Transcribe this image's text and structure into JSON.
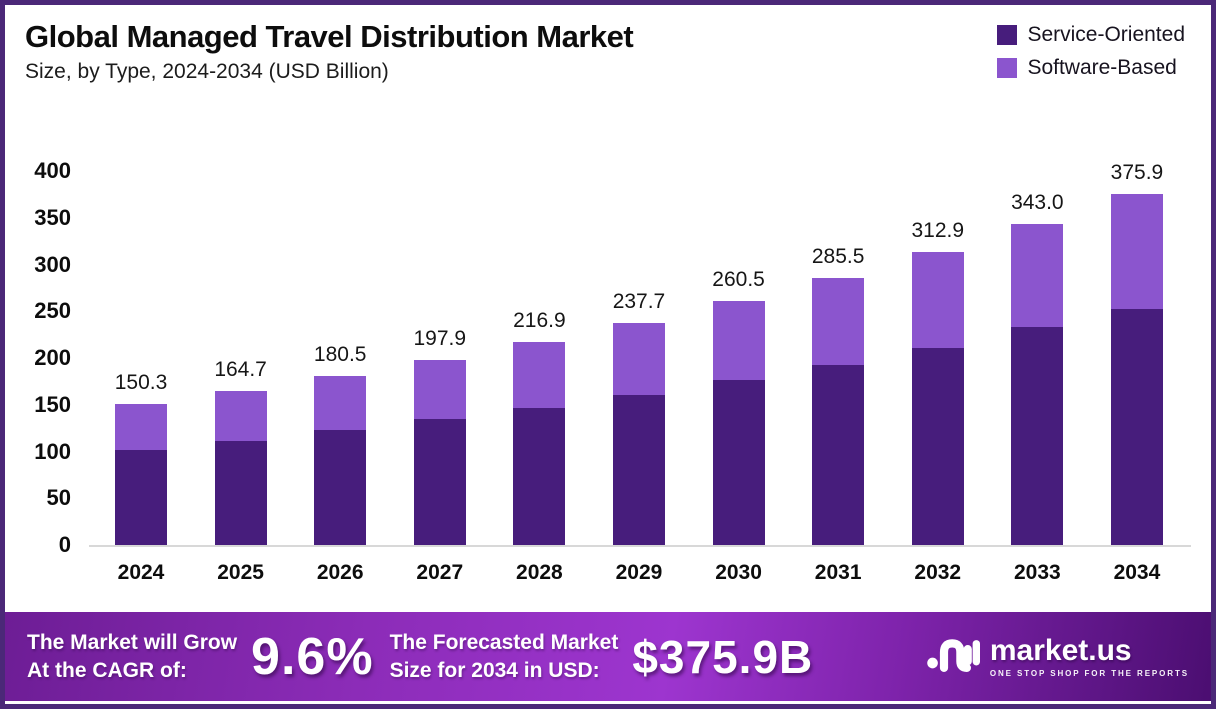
{
  "header": {
    "title": "Global Managed Travel Distribution Market",
    "subtitle": "Size, by Type, 2024-2034 (USD Billion)"
  },
  "chart_data": {
    "type": "bar",
    "stacked": true,
    "title": "Global Managed Travel Distribution Market Size, by Type, 2024-2034 (USD Billion)",
    "categories": [
      "2024",
      "2025",
      "2026",
      "2027",
      "2028",
      "2029",
      "2030",
      "2031",
      "2032",
      "2033",
      "2034"
    ],
    "series": [
      {
        "name": "Service-Oriented",
        "color": "#471d7c",
        "values": [
          102.0,
          111.6,
          122.8,
          134.3,
          147.0,
          161.0,
          176.8,
          192.9,
          211.0,
          232.7,
          252.3
        ]
      },
      {
        "name": "Software-Based",
        "color": "#8b55ce",
        "values": [
          48.3,
          53.1,
          57.7,
          63.6,
          69.9,
          76.7,
          83.7,
          92.6,
          101.9,
          110.3,
          123.6
        ]
      }
    ],
    "totals": [
      150.3,
      164.7,
      180.5,
      197.9,
      216.9,
      237.7,
      260.5,
      285.5,
      312.9,
      343.0,
      375.9
    ],
    "total_labels": [
      "150.3",
      "164.7",
      "180.5",
      "197.9",
      "216.9",
      "237.7",
      "260.5",
      "285.5",
      "312.9",
      "343.0",
      "375.9"
    ],
    "xlabel": "",
    "ylabel": "",
    "ylim": [
      0,
      400
    ],
    "ytick_labels": [
      "0",
      "50",
      "100",
      "150",
      "200",
      "250",
      "300",
      "350",
      "400"
    ],
    "grid": false,
    "legend_position": "top-right"
  },
  "banner": {
    "cagr_label_line1": "The Market will Grow",
    "cagr_label_line2": "At the CAGR of:",
    "cagr_value": "9.6%",
    "forecast_label_line1": "The Forecasted Market",
    "forecast_label_line2": "Size for 2034 in USD:",
    "forecast_value": "$375.9B",
    "brand_name": "market.us",
    "brand_tagline": "ONE STOP SHOP FOR THE REPORTS"
  },
  "colors": {
    "frame_border": "#4b2878",
    "service_oriented": "#471d7c",
    "software_based": "#8b55ce",
    "axis_line": "#d8d8d8",
    "banner_gradient_start": "#6d1d95",
    "banner_gradient_mid": "#9d35cf",
    "banner_gradient_end": "#4b0e71"
  }
}
